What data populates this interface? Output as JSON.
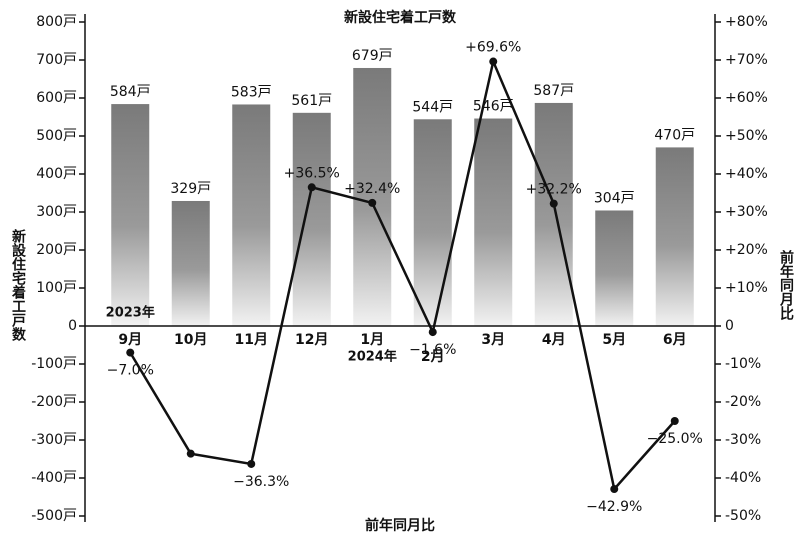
{
  "chart_data": {
    "type": "bar",
    "title": "新設住宅着工戸数",
    "x_label": "前年同月比",
    "y_label": "新設住宅着工戸数",
    "y2_label": "前年同月比",
    "categories": [
      "9月",
      "10月",
      "11月",
      "12月",
      "1月",
      "2月",
      "3月",
      "4月",
      "5月",
      "6月"
    ],
    "annotations": [
      {
        "text": "2023年",
        "category": 0
      },
      {
        "text": "2024年",
        "category": 4
      }
    ],
    "series": [
      {
        "name": "新設住宅着工戸数",
        "type": "bar",
        "color": "#7a7a7a",
        "values": [
          584,
          329,
          583,
          561,
          679,
          544,
          546,
          587,
          304,
          470
        ],
        "value_labels": [
          "584戸",
          "329戸",
          "583戸",
          "561戸",
          "679戸",
          "544戸",
          "546戸",
          "587戸",
          "304戸",
          "470戸"
        ]
      },
      {
        "name": "前年同月比",
        "type": "line",
        "axis": "y2",
        "color": "#111111",
        "values": [
          -7.0,
          -33.6,
          -36.3,
          36.5,
          32.4,
          -1.6,
          69.6,
          32.2,
          -42.9,
          -25.0
        ],
        "value_labels": [
          "−7.0%",
          null,
          "−36.3%",
          "+36.5%",
          "+32.4%",
          "−1.6%",
          "+69.6%",
          "+32.2%",
          "−42.9%",
          "−25.0%"
        ]
      }
    ],
    "ylim": [
      -500,
      800
    ],
    "yticks": [
      {
        "value": -500,
        "label": "-500戸"
      },
      {
        "value": -400,
        "label": "-400戸"
      },
      {
        "value": -300,
        "label": "-300戸"
      },
      {
        "value": -200,
        "label": "-200戸"
      },
      {
        "value": -100,
        "label": "-100戸"
      },
      0,
      {
        "value": 100,
        "label": "100戸"
      },
      {
        "value": 200,
        "label": "200戸"
      },
      {
        "value": 300,
        "label": "300戸"
      },
      {
        "value": 400,
        "label": "400戸"
      },
      {
        "value": 500,
        "label": "500戸"
      },
      {
        "value": 600,
        "label": "600戸"
      },
      {
        "value": 700,
        "label": "700戸"
      },
      {
        "value": 800,
        "label": "800戸"
      }
    ],
    "y2lim": [
      -50,
      80
    ],
    "y2ticks": [
      {
        "value": -50,
        "label": "-50%"
      },
      {
        "value": -40,
        "label": "-40%"
      },
      {
        "value": -30,
        "label": "-30%"
      },
      {
        "value": -20,
        "label": "-20%"
      },
      {
        "value": -10,
        "label": "-10%"
      },
      0,
      {
        "value": 10,
        "label": "+10%"
      },
      {
        "value": 20,
        "label": "+20%"
      },
      {
        "value": 30,
        "label": "+30%"
      },
      {
        "value": 40,
        "label": "+40%"
      },
      {
        "value": 50,
        "label": "+50%"
      },
      {
        "value": 60,
        "label": "+60%"
      },
      {
        "value": 70,
        "label": "+70%"
      },
      {
        "value": 80,
        "label": "+80%"
      }
    ]
  }
}
